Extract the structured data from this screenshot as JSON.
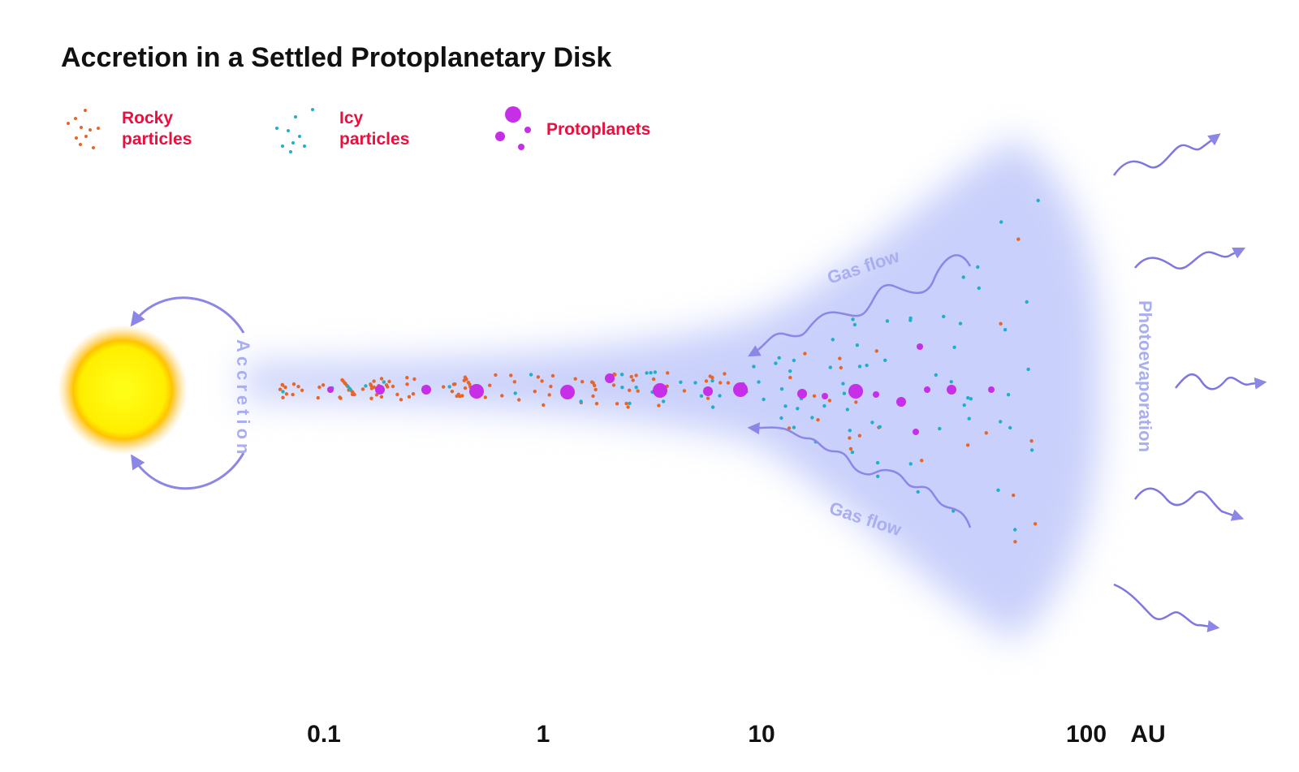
{
  "title": "Accretion in a Settled Protoplanetary Disk",
  "legend": {
    "rocky": {
      "line1": "Rocky",
      "line2": "particles"
    },
    "icy": {
      "line1": "Icy",
      "line2": "particles"
    },
    "protoplanets": {
      "label": "Protoplanets"
    }
  },
  "labels": {
    "accretion": "Accretion",
    "gas_flow_top": "Gas flow",
    "gas_flow_bottom": "Gas flow",
    "photoevaporation": "Photoevaporation"
  },
  "axis": {
    "ticks": [
      "0.1",
      "1",
      "10",
      "100"
    ],
    "unit": "AU"
  },
  "colors": {
    "rocky": "#e8652a",
    "icy": "#1fb0c8",
    "protoplanet": "#c62ee8",
    "arrow": "#8c86e6",
    "disk": "#c9d0fb",
    "label_pink": "#e8103f",
    "flow_label": "#a9aef0",
    "sun_core": "#ffee00",
    "sun_glow": "#ffa500"
  }
}
